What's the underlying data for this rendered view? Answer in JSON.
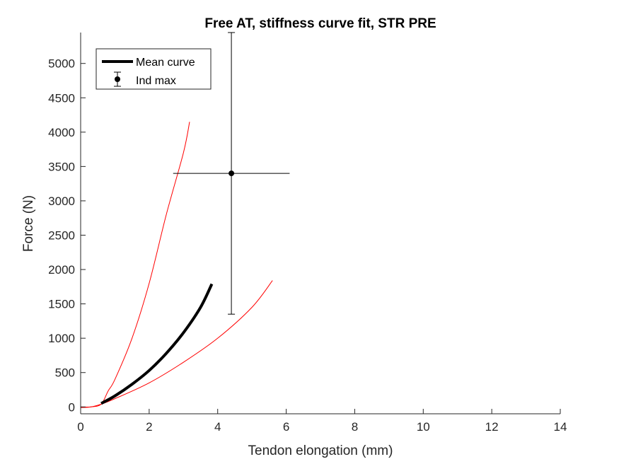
{
  "chart_data": {
    "type": "line",
    "title": "Free AT, stiffness curve fit, STR PRE",
    "xlabel": "Tendon elongation (mm)",
    "ylabel": "Force (N)",
    "xlim": [
      0,
      14
    ],
    "ylim": [
      -100,
      5450
    ],
    "xticks": [
      0,
      2,
      4,
      6,
      8,
      10,
      12,
      14
    ],
    "yticks": [
      0,
      500,
      1000,
      1500,
      2000,
      2500,
      3000,
      3500,
      4000,
      4500,
      5000
    ],
    "grid": false,
    "legend_position": "top-left",
    "series": [
      {
        "name": "Mean curve",
        "color": "#000000",
        "x": [
          0.6,
          1.0,
          1.5,
          2.0,
          2.5,
          3.0,
          3.5,
          3.83
        ],
        "y": [
          50,
          160,
          330,
          530,
          780,
          1080,
          1450,
          1790
        ]
      },
      {
        "color": "#ff0000",
        "x": [
          0.0,
          0.3,
          0.6,
          0.8,
          1.0,
          1.5,
          2.0,
          2.5,
          3.0,
          3.18
        ],
        "y": [
          -10,
          0,
          40,
          230,
          400,
          1000,
          1800,
          2800,
          3700,
          4150
        ]
      },
      {
        "color": "#ff0000",
        "x": [
          0.0,
          0.3,
          0.6,
          1.0,
          2.0,
          3.0,
          4.0,
          5.0,
          5.6
        ],
        "y": [
          0,
          0,
          40,
          120,
          350,
          650,
          1000,
          1450,
          1840
        ]
      },
      {
        "name": "Ind max",
        "type": "errorbar",
        "color": "#000000",
        "x": [
          4.4
        ],
        "y": [
          3400
        ],
        "y_error": [
          2050
        ],
        "x_error": [
          1.7
        ]
      }
    ]
  }
}
